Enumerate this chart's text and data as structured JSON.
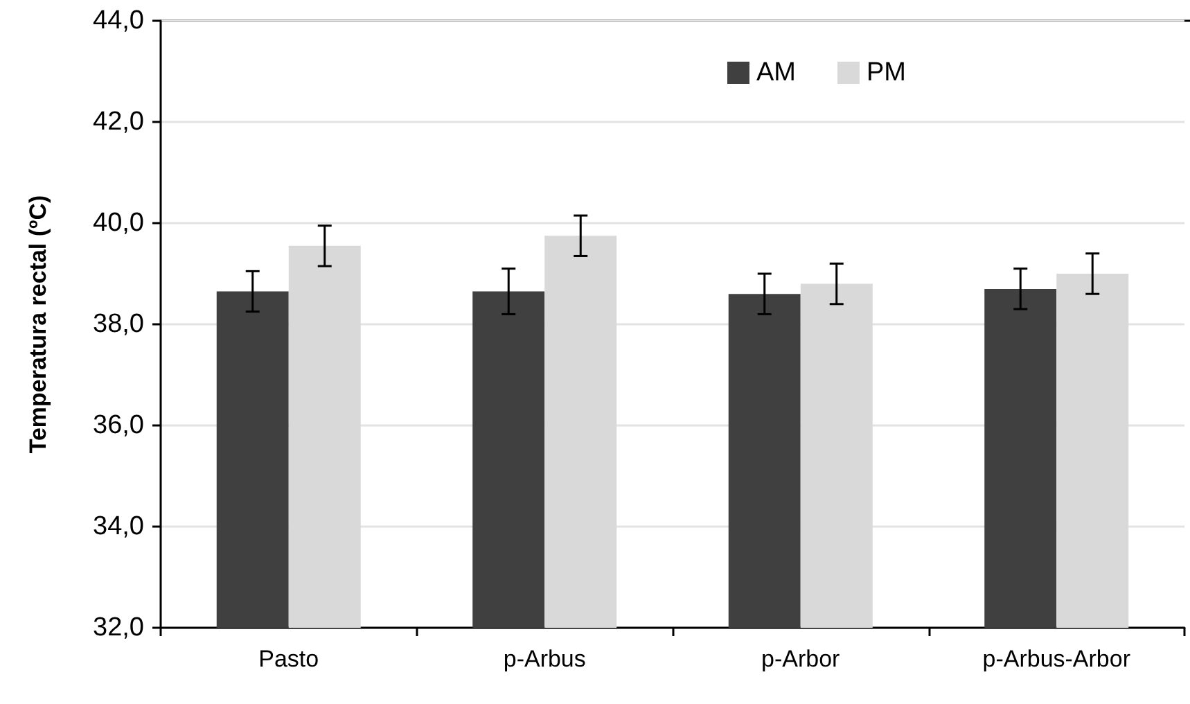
{
  "chart_data": {
    "type": "bar",
    "ylabel": "Temperatura rectal (ºC)",
    "categories": [
      "Pasto",
      "p-Arbus",
      "p-Arbor",
      "p-Arbus-Arbor"
    ],
    "series": [
      {
        "name": "AM",
        "color": "#404040",
        "values": [
          38.65,
          38.65,
          38.6,
          38.7
        ],
        "errors": [
          0.4,
          0.45,
          0.4,
          0.4
        ]
      },
      {
        "name": "PM",
        "color": "#d9d9d9",
        "values": [
          39.55,
          39.75,
          38.8,
          39.0
        ],
        "errors": [
          0.4,
          0.4,
          0.4,
          0.4
        ]
      }
    ],
    "ylim": [
      32,
      44
    ],
    "yticks": [
      {
        "value": 32,
        "label": "32,0"
      },
      {
        "value": 34,
        "label": "34,0"
      },
      {
        "value": 36,
        "label": "36,0"
      },
      {
        "value": 38,
        "label": "38,0"
      },
      {
        "value": 40,
        "label": "40,0"
      },
      {
        "value": 42,
        "label": "42,0"
      },
      {
        "value": 44,
        "label": "44,0"
      }
    ],
    "grid": "y",
    "legend": "top right"
  }
}
